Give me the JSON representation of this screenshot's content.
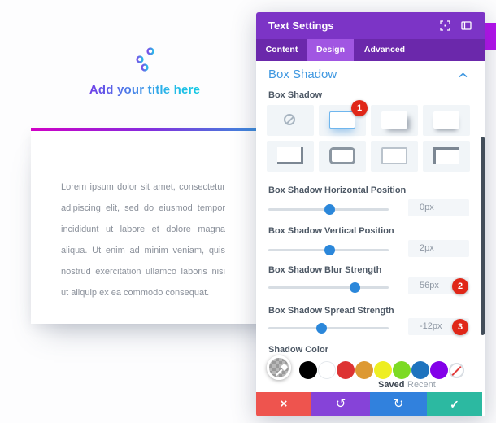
{
  "preview": {
    "title": "Add your title here",
    "body_text": "Lorem ipsum dolor sit amet, consectetur adipiscing elit, sed do eiusmod tempor incididunt ut labore et dolore magna aliqua. Ut enim ad minim veniam, quis nostrud exercitation ullamco laboris nisi ut aliquip ex ea commodo consequat."
  },
  "modal": {
    "title": "Text Settings",
    "tabs": [
      {
        "label": "Content"
      },
      {
        "label": "Design"
      },
      {
        "label": "Advanced"
      }
    ],
    "active_tab": "Design",
    "section_title": "Box Shadow",
    "box_shadow_label": "Box Shadow",
    "badges": {
      "preset": "1",
      "blur": "2",
      "spread": "3"
    },
    "sliders": [
      {
        "label": "Box Shadow Horizontal Position",
        "value": "0px",
        "percent": 51
      },
      {
        "label": "Box Shadow Vertical Position",
        "value": "2px",
        "percent": 51
      },
      {
        "label": "Box Shadow Blur Strength",
        "value": "56px",
        "percent": 72
      },
      {
        "label": "Box Shadow Spread Strength",
        "value": "-12px",
        "percent": 44
      }
    ],
    "shadow_color": {
      "label": "Shadow Color",
      "swatches": [
        "#000000",
        "#ffffff",
        "#dd3333",
        "#dd9933",
        "#eeee22",
        "#7cda24",
        "#1e73be",
        "#8300e9"
      ],
      "picker_tabs": [
        "Saved",
        "Recent"
      ]
    },
    "footer": {
      "close_glyph": "×",
      "undo_glyph": "↺",
      "redo_glyph": "↻",
      "confirm_glyph": "✓"
    }
  },
  "colors": {
    "header_purple": "#7c34c6",
    "tabbar_purple": "#6b28ab",
    "active_tab_purple": "#a156e2",
    "accent_blue": "#2b87da",
    "badge_red": "#e02718",
    "footer_red": "#ee544e",
    "footer_purple": "#8643d8",
    "footer_blue": "#3181dd",
    "footer_teal": "#2cb9a1",
    "background_accent_magenta": "#b511ee",
    "title_gradient": [
      "#7c2ae8",
      "#00d8e0"
    ],
    "divider_gradient": [
      "#d400c8",
      "#8a2be2",
      "#00e0cf"
    ]
  }
}
